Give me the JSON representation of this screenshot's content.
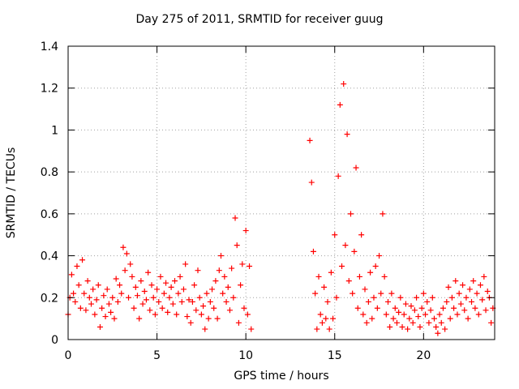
{
  "chart_data": {
    "type": "scatter",
    "title": "Day 275 of 2011, SRMTID for receiver guug",
    "xlabel": "GPS time / hours",
    "ylabel": "SRMTID / TECUs",
    "xlim": [
      0,
      24
    ],
    "ylim": [
      0,
      1.4
    ],
    "xticks": [
      0,
      5,
      10,
      15,
      20
    ],
    "yticks": [
      0,
      0.2,
      0.4,
      0.6,
      0.8,
      1,
      1.2,
      1.4
    ],
    "xtick_labels": [
      "0",
      "5",
      "10",
      "15",
      "20"
    ],
    "ytick_labels": [
      "0",
      "0.2",
      "0.4",
      "0.6",
      "0.8",
      "1",
      "1.2",
      "1.4"
    ],
    "grid": true,
    "marker": "+",
    "marker_color": "#ff0000",
    "series": [
      {
        "name": "SRMTID",
        "points": [
          [
            0.0,
            0.12
          ],
          [
            0.1,
            0.2
          ],
          [
            0.2,
            0.31
          ],
          [
            0.3,
            0.22
          ],
          [
            0.4,
            0.18
          ],
          [
            0.5,
            0.35
          ],
          [
            0.6,
            0.26
          ],
          [
            0.7,
            0.15
          ],
          [
            0.8,
            0.38
          ],
          [
            0.9,
            0.22
          ],
          [
            1.0,
            0.14
          ],
          [
            1.1,
            0.28
          ],
          [
            1.2,
            0.2
          ],
          [
            1.3,
            0.17
          ],
          [
            1.4,
            0.24
          ],
          [
            1.5,
            0.12
          ],
          [
            1.6,
            0.19
          ],
          [
            1.7,
            0.26
          ],
          [
            1.8,
            0.06
          ],
          [
            1.9,
            0.15
          ],
          [
            2.0,
            0.21
          ],
          [
            2.1,
            0.11
          ],
          [
            2.2,
            0.24
          ],
          [
            2.3,
            0.17
          ],
          [
            2.4,
            0.13
          ],
          [
            2.5,
            0.2
          ],
          [
            2.6,
            0.1
          ],
          [
            2.7,
            0.29
          ],
          [
            2.8,
            0.18
          ],
          [
            2.9,
            0.26
          ],
          [
            3.0,
            0.22
          ],
          [
            3.1,
            0.44
          ],
          [
            3.2,
            0.33
          ],
          [
            3.3,
            0.41
          ],
          [
            3.4,
            0.2
          ],
          [
            3.5,
            0.36
          ],
          [
            3.6,
            0.3
          ],
          [
            3.7,
            0.15
          ],
          [
            3.8,
            0.25
          ],
          [
            3.9,
            0.21
          ],
          [
            4.0,
            0.1
          ],
          [
            4.1,
            0.28
          ],
          [
            4.2,
            0.17
          ],
          [
            4.3,
            0.23
          ],
          [
            4.4,
            0.19
          ],
          [
            4.5,
            0.32
          ],
          [
            4.6,
            0.14
          ],
          [
            4.7,
            0.26
          ],
          [
            4.8,
            0.2
          ],
          [
            4.9,
            0.12
          ],
          [
            5.0,
            0.24
          ],
          [
            5.1,
            0.18
          ],
          [
            5.2,
            0.3
          ],
          [
            5.3,
            0.15
          ],
          [
            5.4,
            0.22
          ],
          [
            5.5,
            0.27
          ],
          [
            5.6,
            0.13
          ],
          [
            5.7,
            0.2
          ],
          [
            5.8,
            0.25
          ],
          [
            5.9,
            0.17
          ],
          [
            6.0,
            0.28
          ],
          [
            6.1,
            0.12
          ],
          [
            6.2,
            0.22
          ],
          [
            6.3,
            0.3
          ],
          [
            6.4,
            0.18
          ],
          [
            6.5,
            0.24
          ],
          [
            6.6,
            0.36
          ],
          [
            6.7,
            0.11
          ],
          [
            6.8,
            0.19
          ],
          [
            6.9,
            0.08
          ],
          [
            7.0,
            0.18
          ],
          [
            7.1,
            0.26
          ],
          [
            7.2,
            0.14
          ],
          [
            7.3,
            0.33
          ],
          [
            7.4,
            0.2
          ],
          [
            7.5,
            0.12
          ],
          [
            7.6,
            0.16
          ],
          [
            7.7,
            0.05
          ],
          [
            7.8,
            0.22
          ],
          [
            7.9,
            0.1
          ],
          [
            8.0,
            0.18
          ],
          [
            8.1,
            0.24
          ],
          [
            8.2,
            0.15
          ],
          [
            8.3,
            0.28
          ],
          [
            8.4,
            0.1
          ],
          [
            8.5,
            0.33
          ],
          [
            8.6,
            0.4
          ],
          [
            8.7,
            0.22
          ],
          [
            8.8,
            0.3
          ],
          [
            8.9,
            0.18
          ],
          [
            9.0,
            0.25
          ],
          [
            9.1,
            0.14
          ],
          [
            9.2,
            0.34
          ],
          [
            9.3,
            0.2
          ],
          [
            9.4,
            0.58
          ],
          [
            9.5,
            0.45
          ],
          [
            9.6,
            0.08
          ],
          [
            9.7,
            0.26
          ],
          [
            9.8,
            0.36
          ],
          [
            9.9,
            0.15
          ],
          [
            10.0,
            0.52
          ],
          [
            10.1,
            0.12
          ],
          [
            10.2,
            0.35
          ],
          [
            10.3,
            0.05
          ],
          [
            13.6,
            0.95
          ],
          [
            13.7,
            0.75
          ],
          [
            13.8,
            0.42
          ],
          [
            13.9,
            0.22
          ],
          [
            14.0,
            0.05
          ],
          [
            14.1,
            0.3
          ],
          [
            14.2,
            0.12
          ],
          [
            14.3,
            0.08
          ],
          [
            14.4,
            0.25
          ],
          [
            14.5,
            0.1
          ],
          [
            14.6,
            0.18
          ],
          [
            14.7,
            0.05
          ],
          [
            14.8,
            0.32
          ],
          [
            14.9,
            0.1
          ],
          [
            15.0,
            0.5
          ],
          [
            15.1,
            0.2
          ],
          [
            15.2,
            0.78
          ],
          [
            15.3,
            1.12
          ],
          [
            15.4,
            0.35
          ],
          [
            15.5,
            1.22
          ],
          [
            15.6,
            0.45
          ],
          [
            15.7,
            0.98
          ],
          [
            15.8,
            0.28
          ],
          [
            15.9,
            0.6
          ],
          [
            16.0,
            0.22
          ],
          [
            16.1,
            0.42
          ],
          [
            16.2,
            0.82
          ],
          [
            16.3,
            0.15
          ],
          [
            16.4,
            0.3
          ],
          [
            16.5,
            0.5
          ],
          [
            16.6,
            0.12
          ],
          [
            16.7,
            0.24
          ],
          [
            16.8,
            0.08
          ],
          [
            16.9,
            0.18
          ],
          [
            17.0,
            0.32
          ],
          [
            17.1,
            0.1
          ],
          [
            17.2,
            0.2
          ],
          [
            17.3,
            0.35
          ],
          [
            17.4,
            0.15
          ],
          [
            17.5,
            0.4
          ],
          [
            17.6,
            0.22
          ],
          [
            17.7,
            0.6
          ],
          [
            17.8,
            0.3
          ],
          [
            17.9,
            0.12
          ],
          [
            18.0,
            0.18
          ],
          [
            18.1,
            0.06
          ],
          [
            18.2,
            0.22
          ],
          [
            18.3,
            0.1
          ],
          [
            18.4,
            0.15
          ],
          [
            18.5,
            0.08
          ],
          [
            18.6,
            0.13
          ],
          [
            18.7,
            0.2
          ],
          [
            18.8,
            0.06
          ],
          [
            18.9,
            0.12
          ],
          [
            19.0,
            0.17
          ],
          [
            19.1,
            0.05
          ],
          [
            19.2,
            0.1
          ],
          [
            19.3,
            0.16
          ],
          [
            19.4,
            0.08
          ],
          [
            19.5,
            0.14
          ],
          [
            19.6,
            0.2
          ],
          [
            19.7,
            0.11
          ],
          [
            19.8,
            0.06
          ],
          [
            19.9,
            0.15
          ],
          [
            20.0,
            0.22
          ],
          [
            20.1,
            0.12
          ],
          [
            20.2,
            0.18
          ],
          [
            20.3,
            0.08
          ],
          [
            20.4,
            0.14
          ],
          [
            20.5,
            0.2
          ],
          [
            20.6,
            0.1
          ],
          [
            20.7,
            0.06
          ],
          [
            20.8,
            0.03
          ],
          [
            20.9,
            0.12
          ],
          [
            21.0,
            0.08
          ],
          [
            21.1,
            0.15
          ],
          [
            21.2,
            0.05
          ],
          [
            21.3,
            0.18
          ],
          [
            21.4,
            0.25
          ],
          [
            21.5,
            0.1
          ],
          [
            21.6,
            0.2
          ],
          [
            21.7,
            0.15
          ],
          [
            21.8,
            0.28
          ],
          [
            21.9,
            0.12
          ],
          [
            22.0,
            0.22
          ],
          [
            22.1,
            0.17
          ],
          [
            22.2,
            0.26
          ],
          [
            22.3,
            0.14
          ],
          [
            22.4,
            0.2
          ],
          [
            22.5,
            0.1
          ],
          [
            22.6,
            0.24
          ],
          [
            22.7,
            0.18
          ],
          [
            22.8,
            0.28
          ],
          [
            22.9,
            0.15
          ],
          [
            23.0,
            0.22
          ],
          [
            23.1,
            0.12
          ],
          [
            23.2,
            0.26
          ],
          [
            23.3,
            0.19
          ],
          [
            23.4,
            0.3
          ],
          [
            23.5,
            0.14
          ],
          [
            23.6,
            0.23
          ],
          [
            23.7,
            0.2
          ],
          [
            23.8,
            0.08
          ],
          [
            23.9,
            0.15
          ]
        ]
      }
    ]
  }
}
